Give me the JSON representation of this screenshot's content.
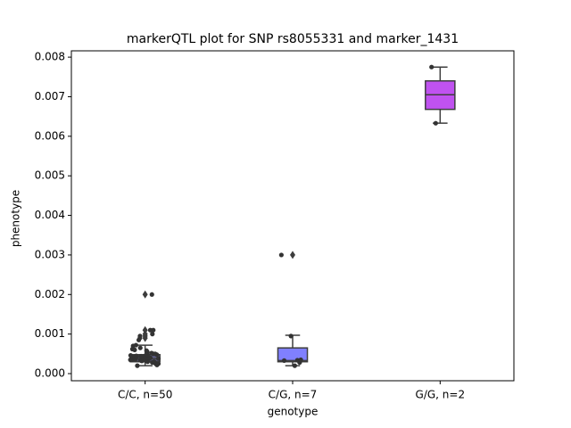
{
  "chart_data": {
    "type": "box",
    "title": "markerQTL plot for SNP rs8055331 and marker_1431",
    "x_label": "genotype",
    "y_label": "phenotype",
    "categories": [
      "C/C, n=50",
      "C/G, n=7",
      "G/G, n=2"
    ],
    "ylim": [
      -0.00018,
      0.00816
    ],
    "yticks": [
      {
        "value": 0,
        "label": "0.000"
      },
      {
        "value": 0.001,
        "label": "0.001"
      },
      {
        "value": 0.002,
        "label": "0.002"
      },
      {
        "value": 0.003,
        "label": "0.003"
      },
      {
        "value": 0.004,
        "label": "0.004"
      },
      {
        "value": 0.005,
        "label": "0.005"
      },
      {
        "value": 0.006,
        "label": "0.006"
      },
      {
        "value": 0.007,
        "label": "0.007"
      },
      {
        "value": 0.008,
        "label": "0.008"
      }
    ],
    "boxes": [
      {
        "color": "#5f5f8c",
        "whisker_low": 0.0002,
        "q1": 0.0003,
        "median": 0.00038,
        "q3": 0.00048,
        "whisker_high": 0.00072,
        "outliers": [
          0.0009,
          0.00095,
          0.001,
          0.0011,
          0.002
        ],
        "points": [
          0.0002,
          0.00022,
          0.00025,
          0.00025,
          0.00028,
          0.0003,
          0.0003,
          0.0003,
          0.00032,
          0.00032,
          0.00033,
          0.00034,
          0.00035,
          0.00035,
          0.00036,
          0.00036,
          0.00037,
          0.00038,
          0.00038,
          0.00038,
          0.00039,
          0.0004,
          0.0004,
          0.00041,
          0.00042,
          0.00042,
          0.00043,
          0.00044,
          0.00045,
          0.00045,
          0.00046,
          0.00047,
          0.00048,
          0.0005,
          0.0005,
          0.00052,
          0.00055,
          0.00058,
          0.0006,
          0.00062,
          0.00065,
          0.0007,
          0.00072,
          0.00085,
          0.0009,
          0.00095,
          0.001,
          0.0011,
          0.0011,
          0.002
        ]
      },
      {
        "color": "#8080ff",
        "whisker_low": 0.0002,
        "q1": 0.0003,
        "median": 0.00033,
        "q3": 0.00065,
        "whisker_high": 0.00097,
        "outliers": [
          0.003
        ],
        "points": [
          0.0002,
          0.00028,
          0.00034,
          0.00035,
          0.00033,
          0.00095,
          0.003
        ]
      },
      {
        "color": "#c052f0",
        "whisker_low": 0.00633,
        "q1": 0.00668,
        "median": 0.00705,
        "q3": 0.0074,
        "whisker_high": 0.00775,
        "outliers": [],
        "points": [
          0.00633,
          0.00775
        ]
      }
    ]
  }
}
